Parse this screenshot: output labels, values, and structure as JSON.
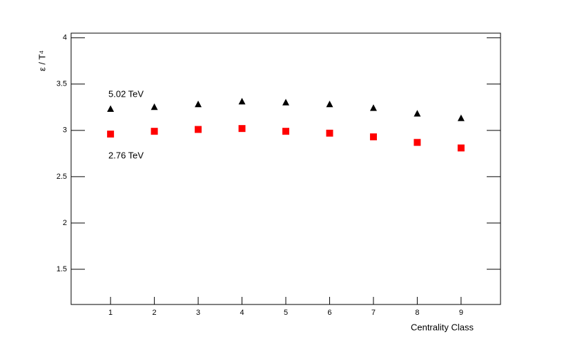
{
  "chart_data": {
    "type": "scatter",
    "xlabel": "Centrality Class",
    "ylabel": "ε / T⁴",
    "xlim": [
      0.1,
      9.9
    ],
    "ylim": [
      1.12,
      4.05
    ],
    "xticks": [
      1,
      2,
      3,
      4,
      5,
      6,
      7,
      8,
      9
    ],
    "yticks": [
      1.5,
      2,
      2.5,
      3,
      3.5,
      4
    ],
    "series": [
      {
        "name": "5.02 TeV",
        "color": "#000000",
        "marker": "triangle",
        "x": [
          1,
          2,
          3,
          4,
          5,
          6,
          7,
          8,
          9
        ],
        "values": [
          3.23,
          3.25,
          3.28,
          3.31,
          3.3,
          3.28,
          3.24,
          3.18,
          3.13
        ]
      },
      {
        "name": "2.76 TeV",
        "color": "#ff0000",
        "marker": "square",
        "x": [
          1,
          2,
          3,
          4,
          5,
          6,
          7,
          8,
          9
        ],
        "values": [
          2.96,
          2.99,
          3.01,
          3.02,
          2.99,
          2.97,
          2.93,
          2.87,
          2.81
        ]
      }
    ]
  }
}
